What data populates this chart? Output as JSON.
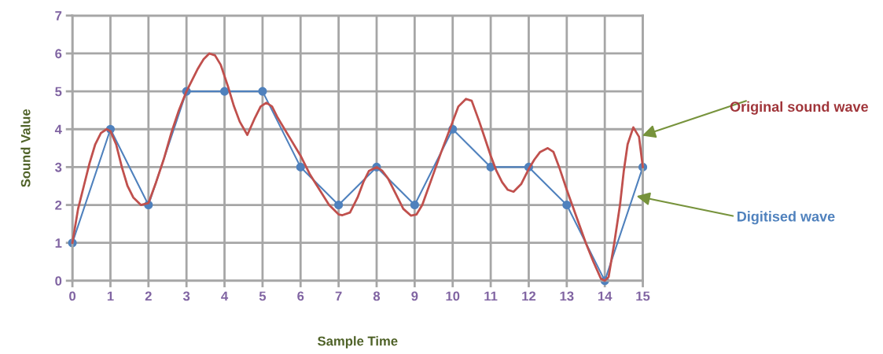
{
  "chart_data": {
    "type": "line",
    "xlabel": "Sample Time",
    "ylabel": "Sound Value",
    "xlim": [
      0,
      15
    ],
    "xticks": [
      0,
      1,
      2,
      3,
      4,
      5,
      6,
      7,
      8,
      9,
      10,
      11,
      12,
      13,
      14,
      15
    ],
    "ylim": [
      0,
      7
    ],
    "yticks": [
      0,
      1,
      2,
      3,
      4,
      5,
      6,
      7
    ],
    "grid": true,
    "legend": false,
    "series": [
      {
        "name": "Original sound wave",
        "color": "#c0504d",
        "marker": "none",
        "x": [
          0,
          0.15,
          0.3,
          0.45,
          0.6,
          0.75,
          0.9,
          1.0,
          1.15,
          1.3,
          1.45,
          1.6,
          1.8,
          2.0,
          2.2,
          2.4,
          2.6,
          2.8,
          3.0,
          3.15,
          3.3,
          3.45,
          3.6,
          3.75,
          3.9,
          4.1,
          4.25,
          4.4,
          4.6,
          4.8,
          4.95,
          5.1,
          5.25,
          5.4,
          5.7,
          6.0,
          6.25,
          6.5,
          6.75,
          7.0,
          7.1,
          7.3,
          7.5,
          7.65,
          7.8,
          8.0,
          8.15,
          8.3,
          8.5,
          8.7,
          8.9,
          9.05,
          9.2,
          9.45,
          9.7,
          10.0,
          10.15,
          10.35,
          10.5,
          10.7,
          10.85,
          11.0,
          11.15,
          11.3,
          11.45,
          11.6,
          11.8,
          12.0,
          12.15,
          12.3,
          12.5,
          12.65,
          12.8,
          13.0,
          13.25,
          13.5,
          13.7,
          13.9,
          14.0,
          14.1,
          14.25,
          14.4,
          14.5,
          14.6,
          14.75,
          14.9,
          15.0
        ],
        "values": [
          1,
          1.9,
          2.5,
          3.1,
          3.6,
          3.9,
          4.0,
          3.95,
          3.6,
          3.0,
          2.5,
          2.2,
          2.0,
          2.05,
          2.6,
          3.2,
          3.9,
          4.5,
          5.0,
          5.3,
          5.6,
          5.85,
          6.0,
          5.95,
          5.7,
          5.1,
          4.6,
          4.2,
          3.85,
          4.3,
          4.6,
          4.7,
          4.6,
          4.3,
          3.8,
          3.3,
          2.8,
          2.4,
          2.0,
          1.75,
          1.73,
          1.8,
          2.2,
          2.6,
          2.9,
          3.0,
          2.9,
          2.7,
          2.3,
          1.9,
          1.72,
          1.75,
          2.0,
          2.7,
          3.4,
          4.2,
          4.6,
          4.8,
          4.75,
          4.2,
          3.75,
          3.3,
          2.9,
          2.6,
          2.4,
          2.35,
          2.55,
          2.95,
          3.2,
          3.4,
          3.5,
          3.4,
          3.0,
          2.4,
          1.7,
          1.0,
          0.5,
          0.05,
          0.0,
          0.1,
          1.0,
          2.0,
          2.9,
          3.6,
          4.05,
          3.8,
          3.0
        ]
      },
      {
        "name": "Digitised wave",
        "color": "#4f81bd",
        "marker": "circle",
        "x": [
          0,
          1,
          2,
          3,
          4,
          5,
          6,
          7,
          8,
          9,
          10,
          11,
          12,
          13,
          14,
          15
        ],
        "values": [
          1,
          4,
          2,
          5,
          5,
          5,
          3,
          2,
          3,
          2,
          4,
          3,
          3,
          2,
          0,
          3
        ]
      }
    ]
  }
}
